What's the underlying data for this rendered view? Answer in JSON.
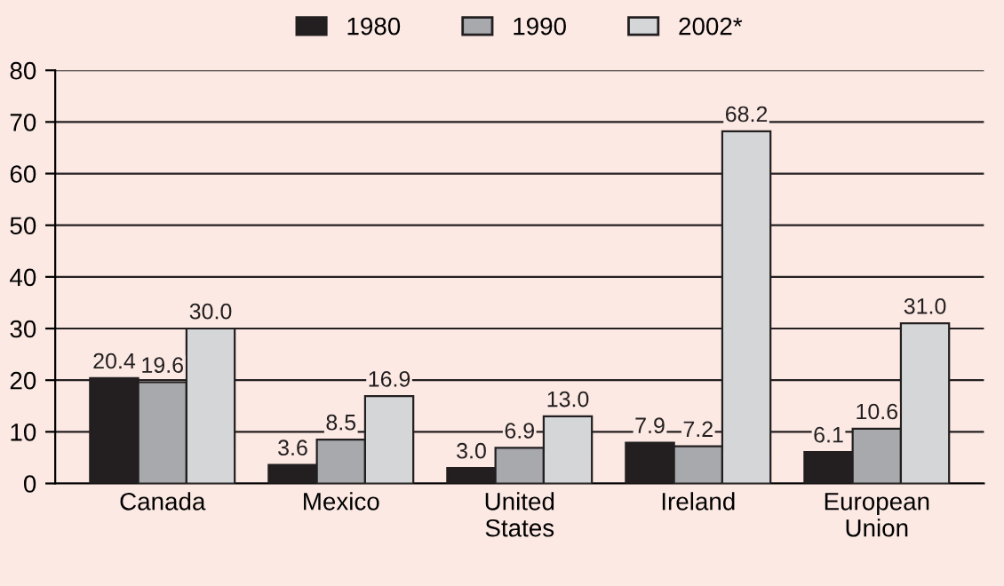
{
  "chart_data": {
    "type": "bar",
    "categories": [
      "Canada",
      "Mexico",
      "United\nStates",
      "Ireland",
      "European\nUnion"
    ],
    "series": [
      {
        "name": "1980",
        "color": "#231f20",
        "values": [
          20.4,
          3.6,
          3.0,
          7.9,
          6.1
        ],
        "value_labels": [
          "20.4",
          "3.6",
          "3.0",
          "7.9",
          "6.1"
        ]
      },
      {
        "name": "1990",
        "color": "#a7a9ac",
        "values": [
          19.6,
          8.5,
          6.9,
          7.2,
          10.6
        ],
        "value_labels": [
          "19.6",
          "8.5",
          "6.9",
          "7.2",
          "10.6"
        ]
      },
      {
        "name": "2002*",
        "color": "#d5d6d8",
        "values": [
          30.0,
          16.9,
          13.0,
          68.2,
          31.0
        ],
        "value_labels": [
          "30.0",
          "16.9",
          "13.0",
          "68.2",
          "31.0"
        ]
      }
    ],
    "ylim": [
      0,
      80
    ],
    "yticks": [
      0,
      10,
      20,
      30,
      40,
      50,
      60,
      70,
      80
    ],
    "grid": "y",
    "legend": "top"
  }
}
